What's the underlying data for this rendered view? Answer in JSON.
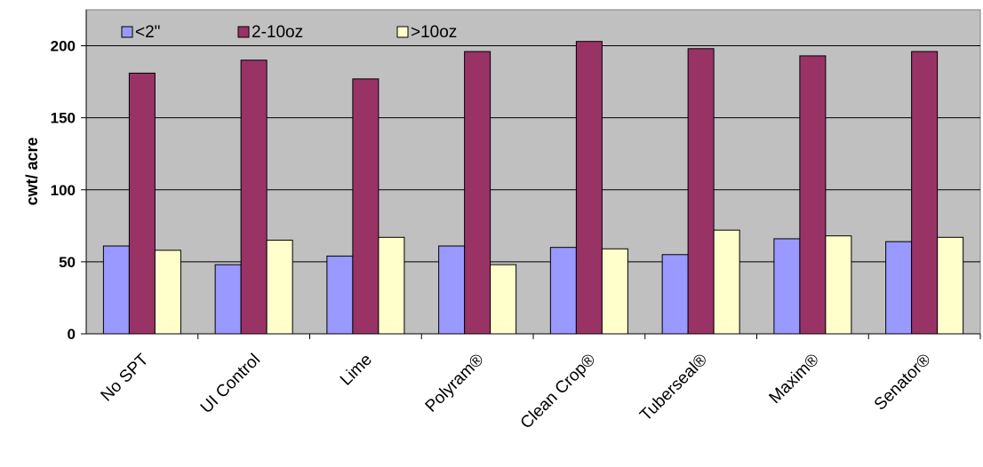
{
  "chart_data": {
    "type": "bar",
    "title": "",
    "xlabel": "",
    "ylabel": "cwt/ acre",
    "ylim": [
      0,
      225
    ],
    "yticks": [
      0,
      50,
      100,
      150,
      200
    ],
    "grid": true,
    "legend_position": "top-left inside",
    "categories": [
      "No SPT",
      "UI Control",
      "Lime",
      "Polyram®",
      "Clean Crop®",
      "Tuberseal®",
      "Maxim®",
      "Senator®"
    ],
    "series": [
      {
        "name": "<2\"",
        "color": "#9999ff",
        "values": [
          61,
          48,
          54,
          61,
          60,
          55,
          66,
          64
        ]
      },
      {
        "name": "2-10oz",
        "color": "#993366",
        "values": [
          181,
          190,
          177,
          196,
          203,
          198,
          193,
          196
        ]
      },
      {
        "name": ">10oz",
        "color": "#ffffcc",
        "values": [
          58,
          65,
          67,
          48,
          59,
          72,
          68,
          67
        ]
      }
    ],
    "plot_background": "#c0c0c0"
  }
}
